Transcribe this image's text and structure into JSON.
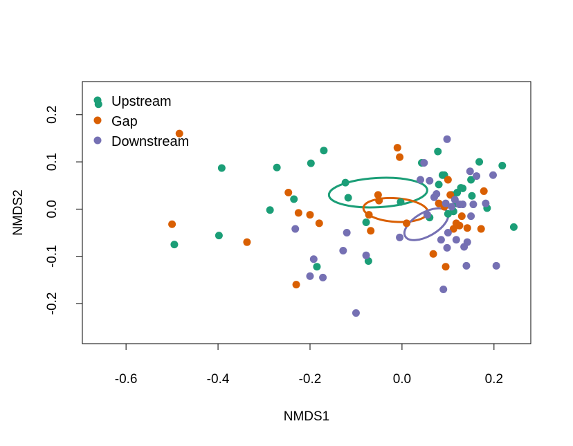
{
  "chart_data": {
    "type": "scatter",
    "title": "",
    "xlabel": "NMDS1",
    "ylabel": "NMDS2",
    "xlim": [
      -0.695,
      0.28
    ],
    "ylim": [
      -0.285,
      0.27
    ],
    "xticks": [
      -0.6,
      -0.4,
      -0.2,
      0.0,
      0.2
    ],
    "xtick_labels": [
      "-0.6",
      "-0.4",
      "-0.2",
      "0.0",
      "0.2"
    ],
    "yticks": [
      -0.2,
      -0.1,
      0.0,
      0.1,
      0.2
    ],
    "ytick_labels": [
      "-0.2",
      "-0.1",
      "0.0",
      "0.1",
      "0.2"
    ],
    "grid": false,
    "legend": {
      "position": "top-left",
      "entries": [
        {
          "label": "Upstream",
          "color": "#1B9E77"
        },
        {
          "label": "Gap",
          "color": "#D95F02"
        },
        {
          "label": "Downstream",
          "color": "#7570B3"
        }
      ]
    },
    "series": [
      {
        "name": "Upstream",
        "color": "#1B9E77",
        "ellipse": {
          "cx": -0.052,
          "cy": 0.035,
          "rx": 0.107,
          "ry": 0.031,
          "angle_deg": -3
        },
        "points": [
          [
            -0.66,
            0.222
          ],
          [
            -0.495,
            -0.075
          ],
          [
            -0.392,
            0.087
          ],
          [
            -0.398,
            -0.056
          ],
          [
            -0.287,
            -0.002
          ],
          [
            -0.272,
            0.088
          ],
          [
            -0.235,
            0.021
          ],
          [
            -0.198,
            0.097
          ],
          [
            -0.17,
            0.124
          ],
          [
            -0.185,
            -0.122
          ],
          [
            -0.123,
            0.056
          ],
          [
            -0.117,
            0.024
          ],
          [
            -0.078,
            -0.028
          ],
          [
            -0.073,
            -0.11
          ],
          [
            -0.003,
            0.015
          ],
          [
            0.043,
            0.098
          ],
          [
            0.06,
            -0.018
          ],
          [
            0.078,
            0.122
          ],
          [
            0.08,
            0.052
          ],
          [
            0.088,
            0.072
          ],
          [
            0.092,
            0.072
          ],
          [
            0.1,
            -0.01
          ],
          [
            0.108,
            0.03
          ],
          [
            0.112,
            -0.005
          ],
          [
            0.118,
            0.012
          ],
          [
            0.12,
            0.035
          ],
          [
            0.128,
            0.045
          ],
          [
            0.132,
            0.044
          ],
          [
            0.15,
            0.062
          ],
          [
            0.152,
            0.028
          ],
          [
            0.168,
            0.1
          ],
          [
            0.185,
            0.002
          ],
          [
            0.218,
            0.092
          ],
          [
            0.243,
            -0.038
          ]
        ]
      },
      {
        "name": "Gap",
        "color": "#D95F02",
        "ellipse": {
          "cx": -0.014,
          "cy": -0.002,
          "rx": 0.07,
          "ry": 0.025,
          "angle_deg": 4
        },
        "points": [
          [
            -0.484,
            0.16
          ],
          [
            -0.5,
            -0.032
          ],
          [
            -0.337,
            -0.07
          ],
          [
            -0.247,
            0.035
          ],
          [
            -0.23,
            -0.16
          ],
          [
            -0.225,
            -0.008
          ],
          [
            -0.2,
            -0.012
          ],
          [
            -0.18,
            -0.03
          ],
          [
            -0.072,
            -0.012
          ],
          [
            -0.068,
            -0.046
          ],
          [
            -0.052,
            0.03
          ],
          [
            -0.05,
            0.018
          ],
          [
            -0.01,
            0.13
          ],
          [
            -0.005,
            0.11
          ],
          [
            0.01,
            -0.03
          ],
          [
            0.068,
            -0.095
          ],
          [
            0.08,
            0.012
          ],
          [
            0.092,
            0.005
          ],
          [
            0.095,
            -0.122
          ],
          [
            0.1,
            0.062
          ],
          [
            0.105,
            0.03
          ],
          [
            0.112,
            -0.042
          ],
          [
            0.118,
            -0.03
          ],
          [
            0.125,
            -0.035
          ],
          [
            0.13,
            -0.015
          ],
          [
            0.142,
            -0.04
          ],
          [
            0.172,
            -0.042
          ],
          [
            0.178,
            0.038
          ]
        ]
      },
      {
        "name": "Downstream",
        "color": "#7570B3",
        "ellipse": {
          "cx": 0.053,
          "cy": -0.032,
          "rx": 0.053,
          "ry": 0.025,
          "angle_deg": -30
        },
        "points": [
          [
            -0.232,
            -0.042
          ],
          [
            -0.2,
            -0.142
          ],
          [
            -0.192,
            -0.106
          ],
          [
            -0.172,
            -0.145
          ],
          [
            -0.128,
            -0.088
          ],
          [
            -0.12,
            -0.05
          ],
          [
            -0.1,
            -0.22
          ],
          [
            -0.078,
            -0.098
          ],
          [
            -0.005,
            -0.06
          ],
          [
            0.04,
            0.062
          ],
          [
            0.048,
            0.098
          ],
          [
            0.055,
            -0.012
          ],
          [
            0.07,
            0.025
          ],
          [
            0.075,
            0.032
          ],
          [
            0.085,
            -0.065
          ],
          [
            0.09,
            -0.17
          ],
          [
            0.095,
            0.012
          ],
          [
            0.098,
            0.148
          ],
          [
            0.1,
            -0.05
          ],
          [
            0.108,
            0.005
          ],
          [
            0.115,
            0.02
          ],
          [
            0.118,
            -0.065
          ],
          [
            0.125,
            0.01
          ],
          [
            0.132,
            0.01
          ],
          [
            0.135,
            -0.08
          ],
          [
            0.14,
            -0.12
          ],
          [
            0.142,
            -0.07
          ],
          [
            0.148,
            0.08
          ],
          [
            0.15,
            -0.015
          ],
          [
            0.155,
            0.01
          ],
          [
            0.162,
            0.07
          ],
          [
            0.182,
            0.012
          ],
          [
            0.198,
            0.072
          ],
          [
            0.205,
            -0.12
          ],
          [
            0.098,
            -0.082
          ],
          [
            0.06,
            0.06
          ]
        ]
      }
    ]
  }
}
